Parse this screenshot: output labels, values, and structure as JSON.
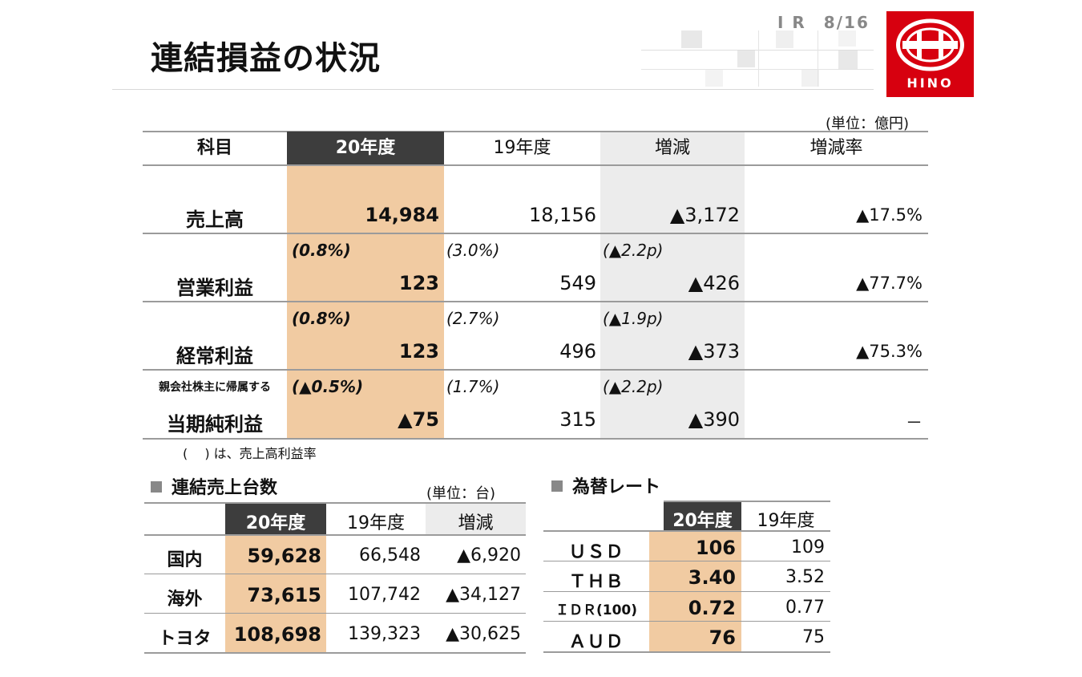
{
  "header": {
    "title": "連結損益の状況",
    "page_number": "I R　8/16",
    "logo_text": "HINO"
  },
  "main_table": {
    "unit": "(単位：億円)",
    "columns": [
      "科目",
      "20年度",
      "19年度",
      "増減",
      "増減率"
    ],
    "rows": [
      {
        "label": "売上高",
        "sublabel": "",
        "fy20": "14,984",
        "fy19": "18,156",
        "diff": "▲3,172",
        "rate": "▲17.5%",
        "fy20_ratio": "",
        "fy19_ratio": "",
        "diff_ratio": ""
      },
      {
        "label": "営業利益",
        "sublabel": "",
        "fy20": "123",
        "fy19": "549",
        "diff": "▲426",
        "rate": "▲77.7%",
        "fy20_ratio": "(0.8%)",
        "fy19_ratio": "(3.0%)",
        "diff_ratio": "(▲2.2p)"
      },
      {
        "label": "経常利益",
        "sublabel": "",
        "fy20": "123",
        "fy19": "496",
        "diff": "▲373",
        "rate": "▲75.3%",
        "fy20_ratio": "(0.8%)",
        "fy19_ratio": "(2.7%)",
        "diff_ratio": "(▲1.9p)"
      },
      {
        "label": "当期純利益",
        "sublabel": "親会社株主に帰属する",
        "fy20": "▲75",
        "fy19": "315",
        "diff": "▲390",
        "rate": "－",
        "fy20_ratio": "(▲0.5%)",
        "fy19_ratio": "(1.7%)",
        "diff_ratio": "(▲2.2p)"
      }
    ],
    "note": "(　 ) は、売上高利益率"
  },
  "units_table": {
    "title": "連結売上台数",
    "unit": "(単位：台)",
    "columns": [
      "",
      "20年度",
      "19年度",
      "増減"
    ],
    "rows": [
      {
        "label": "国内",
        "fy20": "59,628",
        "fy19": "66,548",
        "diff": "▲6,920"
      },
      {
        "label": "海外",
        "fy20": "73,615",
        "fy19": "107,742",
        "diff": "▲34,127"
      },
      {
        "label": "トヨタ",
        "fy20": "108,698",
        "fy19": "139,323",
        "diff": "▲30,625"
      }
    ]
  },
  "fx_table": {
    "title": "為替レート",
    "columns": [
      "",
      "20年度",
      "19年度"
    ],
    "rows": [
      {
        "label": "ＵＳＤ",
        "fy20": "106",
        "fy19": "109"
      },
      {
        "label": "ＴＨＢ",
        "fy20": "3.40",
        "fy19": "3.52"
      },
      {
        "label": "ＩＤＲ(100)",
        "fy20": "0.72",
        "fy19": "0.77"
      },
      {
        "label": "ＡＵＤ",
        "fy20": "76",
        "fy19": "75"
      }
    ]
  },
  "colors": {
    "highlight": "#f1cba2",
    "header_dark": "#3d3d3d",
    "diff_gray": "#ececec",
    "logo_red": "#d7000f"
  }
}
